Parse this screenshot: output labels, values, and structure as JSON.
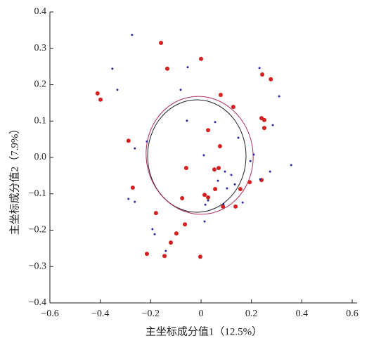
{
  "chart_data": {
    "type": "scatter",
    "xlabel": "主坐标成分值1（12.5%）",
    "ylabel": "主坐标成分值2（7.9%）",
    "xlim": [
      -0.6,
      0.6
    ],
    "ylim": [
      -0.4,
      0.4
    ],
    "xticks": [
      {
        "value": -0.6,
        "label": "−0.6"
      },
      {
        "value": -0.4,
        "label": "−0.4"
      },
      {
        "value": -0.2,
        "label": "−0.2"
      },
      0,
      0.2,
      0.4,
      0.6
    ],
    "yticks": [
      {
        "value": -0.4,
        "label": "−0.4"
      },
      {
        "value": -0.3,
        "label": "−0.3"
      },
      {
        "value": -0.2,
        "label": "−0.2"
      },
      {
        "value": -0.1,
        "label": "−0.1"
      },
      {
        "value": 0,
        "label": "0.0"
      },
      0.1,
      0.2,
      0.3,
      0.4
    ],
    "series": [
      {
        "color": "#d42020",
        "size": 3,
        "x": [
          -0.159,
          0.0,
          -0.134,
          -0.411,
          -0.399,
          0.078,
          0.243,
          0.277,
          0.128,
          0.24,
          0.251,
          0.251,
          0.028,
          -0.288,
          0.075,
          -0.059,
          0.053,
          0.07,
          -0.271,
          0.193,
          0.156,
          0.056,
          0.014,
          -0.075,
          0.028,
          0.087,
          0.137,
          -0.179,
          -0.064,
          -0.098,
          -0.12,
          -0.215,
          -0.145,
          -0.003,
          0.24
        ],
        "y": [
          0.315,
          0.271,
          0.244,
          0.176,
          0.159,
          0.172,
          0.228,
          0.215,
          0.139,
          0.108,
          0.103,
          0.081,
          0.075,
          0.046,
          0.031,
          -0.029,
          -0.033,
          -0.029,
          -0.083,
          -0.068,
          -0.087,
          -0.087,
          -0.103,
          -0.112,
          -0.11,
          -0.135,
          -0.135,
          -0.153,
          -0.184,
          -0.209,
          -0.234,
          -0.265,
          -0.271,
          -0.273,
          -0.062
        ]
      },
      {
        "color": "#2a2aa0",
        "size": 1.5,
        "x": [
          -0.274,
          -0.352,
          -0.332,
          -0.053,
          -0.081,
          0.232,
          0.31,
          -0.056,
          0.056,
          0.285,
          0.148,
          -0.215,
          -0.263,
          0.011,
          0.209,
          0.196,
          0.358,
          0.274,
          0.095,
          0.12,
          0.067,
          0.235,
          0.103,
          0.134,
          -0.288,
          -0.263,
          0.028,
          0.017,
          0.165,
          0.014,
          -0.193,
          -0.184,
          -0.14,
          0.089
        ],
        "y": [
          0.337,
          0.244,
          0.186,
          0.248,
          0.186,
          0.246,
          0.168,
          0.101,
          0.097,
          0.089,
          0.054,
          0.044,
          0.025,
          0.006,
          0.008,
          -0.01,
          -0.021,
          -0.039,
          -0.039,
          -0.048,
          -0.064,
          -0.06,
          -0.085,
          -0.074,
          -0.114,
          -0.122,
          -0.118,
          -0.13,
          -0.124,
          -0.176,
          -0.197,
          -0.211,
          -0.257,
          -0.128
        ]
      }
    ]
  }
}
